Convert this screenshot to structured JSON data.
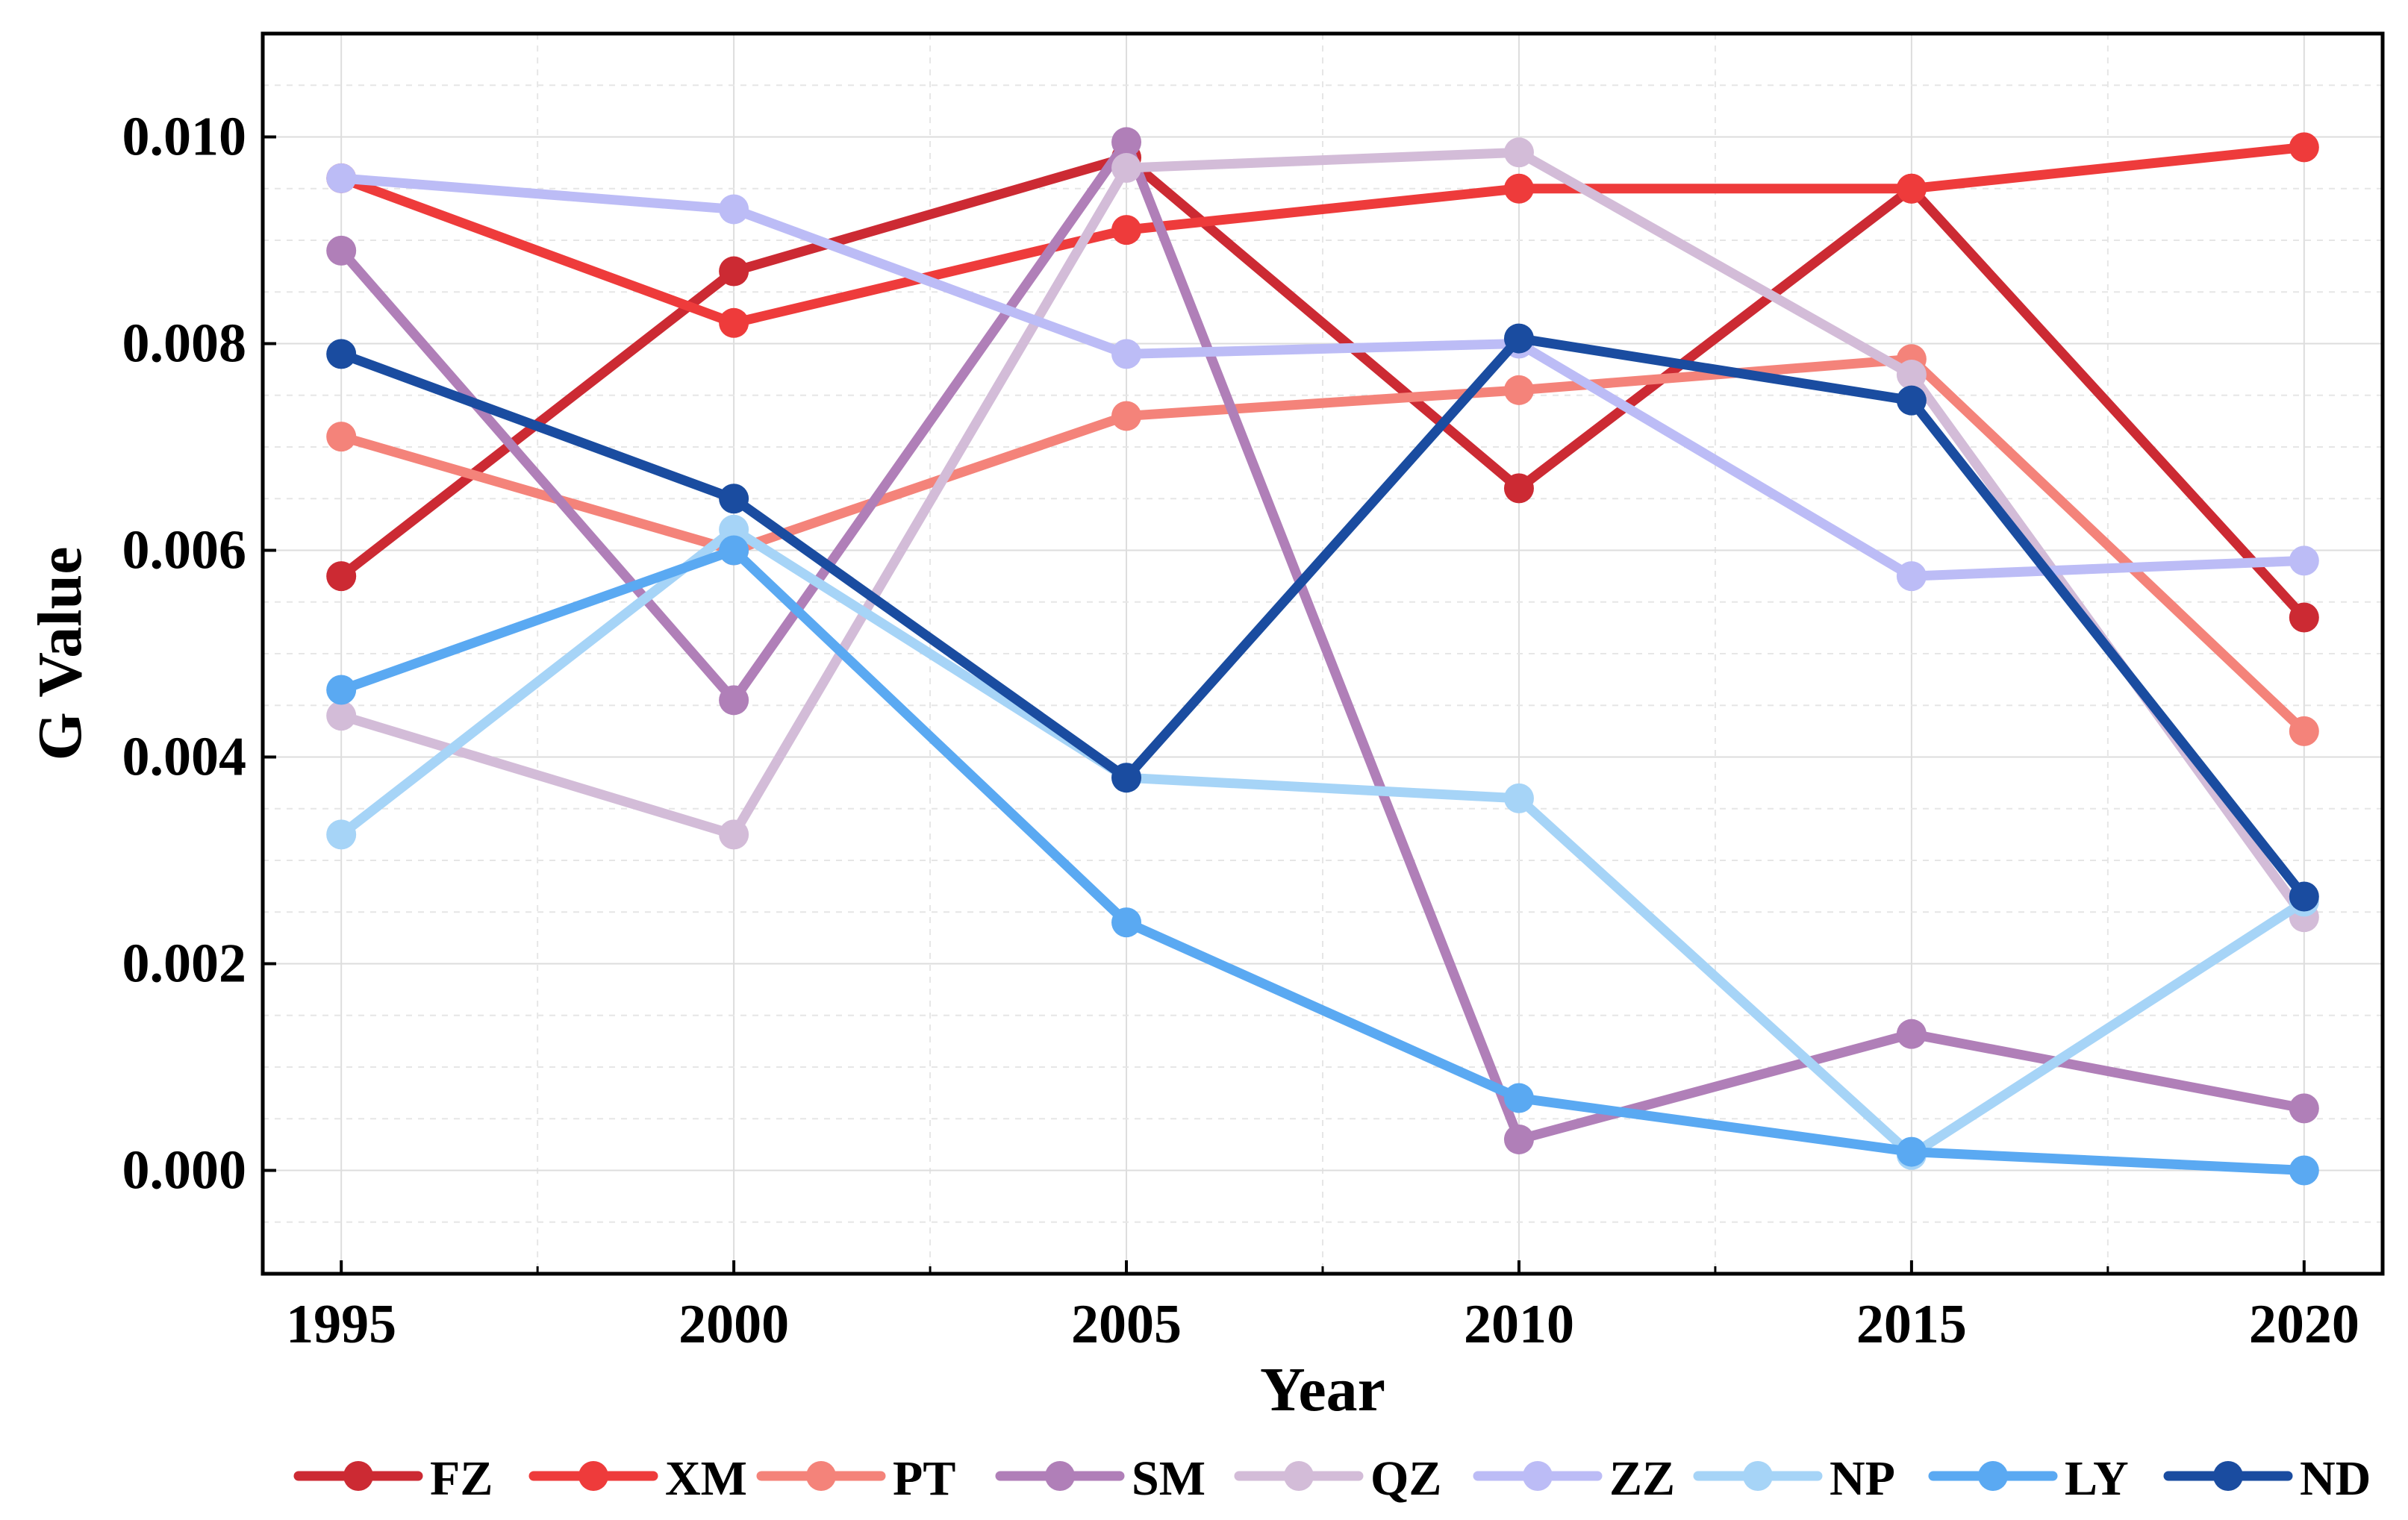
{
  "chart_data": {
    "type": "line",
    "title": "",
    "xlabel": "Year",
    "ylabel": "G Value",
    "categories": [
      1995,
      2000,
      2005,
      2010,
      2015,
      2020
    ],
    "x_tick_labels": [
      "1995",
      "2000",
      "2005",
      "2010",
      "2015",
      "2020"
    ],
    "xlim": [
      1994,
      2021
    ],
    "ylim": [
      -0.001,
      0.011
    ],
    "y_ticks": [
      0.0,
      0.002,
      0.004,
      0.006,
      0.008,
      0.01
    ],
    "y_tick_labels": [
      "0.000",
      "0.002",
      "0.004",
      "0.006",
      "0.008",
      "0.010"
    ],
    "grid": true,
    "legend_position": "bottom",
    "series": [
      {
        "name": "FZ",
        "color": "#cc2a33",
        "values": [
          0.00575,
          0.0087,
          0.0098,
          0.0066,
          0.0095,
          0.00535
        ]
      },
      {
        "name": "XM",
        "color": "#ee3b3b",
        "values": [
          0.0096,
          0.0082,
          0.0091,
          0.0095,
          0.0095,
          0.0099
        ]
      },
      {
        "name": "PT",
        "color": "#f4837a",
        "values": [
          0.0071,
          0.006,
          0.0073,
          0.00755,
          0.00785,
          0.00425
        ]
      },
      {
        "name": "SM",
        "color": "#b07fb8",
        "values": [
          0.0089,
          0.00455,
          0.00995,
          0.0003,
          0.00132,
          0.0006
        ]
      },
      {
        "name": "QZ",
        "color": "#d3bcd8",
        "values": [
          0.0044,
          0.00325,
          0.0097,
          0.00985,
          0.0077,
          0.00245
        ]
      },
      {
        "name": "ZZ",
        "color": "#bcbcf6",
        "values": [
          0.0096,
          0.0093,
          0.0079,
          0.008,
          0.00575,
          0.0059
        ]
      },
      {
        "name": "NP",
        "color": "#a6d4f7",
        "values": [
          0.00325,
          0.0062,
          0.0038,
          0.0036,
          0.00015,
          0.0026
        ]
      },
      {
        "name": "LY",
        "color": "#5aa9f2",
        "values": [
          0.00465,
          0.006,
          0.0024,
          0.0007,
          0.00018,
          0.0
        ]
      },
      {
        "name": "ND",
        "color": "#1a4ca0",
        "values": [
          0.0079,
          0.0065,
          0.0038,
          0.00805,
          0.00745,
          0.00265
        ]
      }
    ]
  }
}
